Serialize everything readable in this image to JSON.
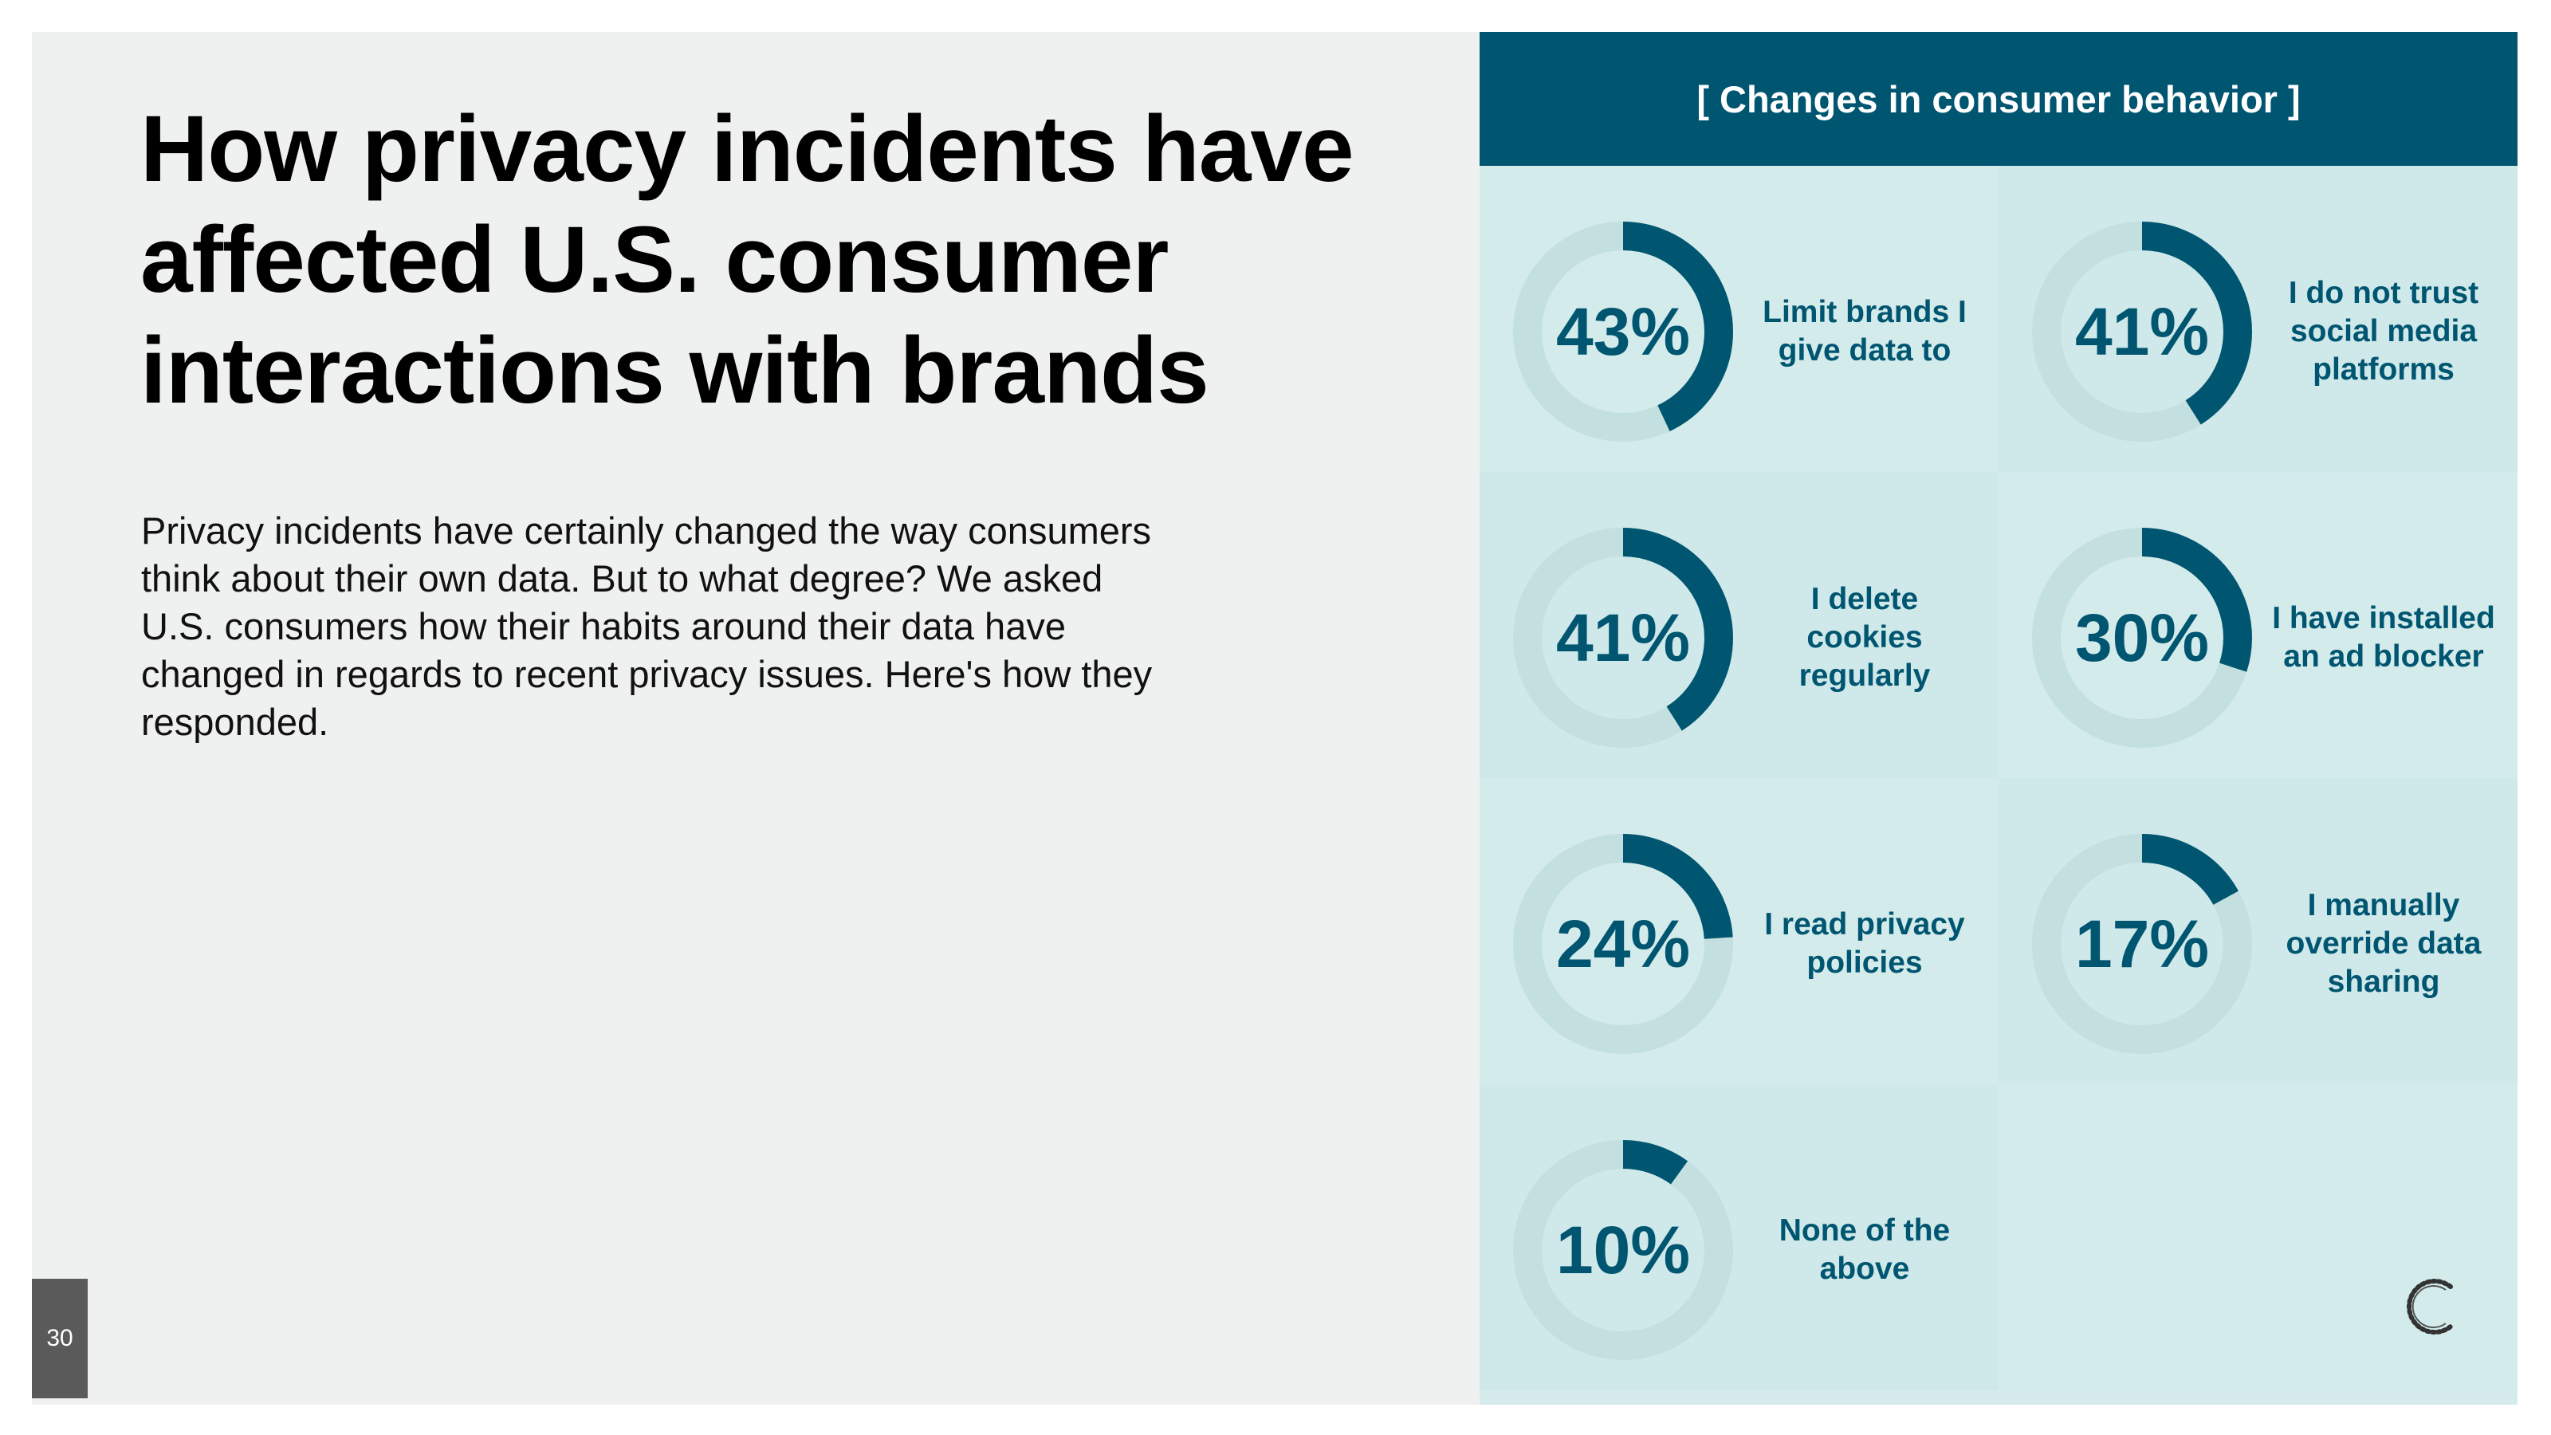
{
  "slide": {
    "title_lines": [
      "How privacy incidents have",
      "affected U.S. consumer",
      "interactions with brands"
    ],
    "body_lines": [
      "Privacy incidents have certainly changed the way consumers",
      "think about their own data. But to what degree? We asked",
      "U.S. consumers how their habits around their data have",
      "changed in regards to recent privacy issues. Here's how they",
      "responded."
    ],
    "page_number": "30"
  },
  "panel": {
    "header": "[ Changes in consumer behavior ]"
  },
  "colors": {
    "accent": "#005570",
    "ring_track": "#c3dfe0",
    "panel_bg": "#d6ebeb",
    "slide_bg": "#eff1f0"
  },
  "chart_data": {
    "type": "donut",
    "title": "[ Changes in consumer behavior ]",
    "unit": "%",
    "items": [
      {
        "label": "Limit brands I give data to",
        "value": 43,
        "display": "43%"
      },
      {
        "label": "I do not trust social media platforms",
        "value": 41,
        "display": "41%"
      },
      {
        "label": "I delete cookies regularly",
        "value": 41,
        "display": "41%"
      },
      {
        "label": "I have installed an ad blocker",
        "value": 30,
        "display": "30%"
      },
      {
        "label": "I read privacy policies",
        "value": 24,
        "display": "24%"
      },
      {
        "label": "I manually override data sharing",
        "value": 17,
        "display": "17%"
      },
      {
        "label": "None of the above",
        "value": 10,
        "display": "10%"
      }
    ]
  }
}
